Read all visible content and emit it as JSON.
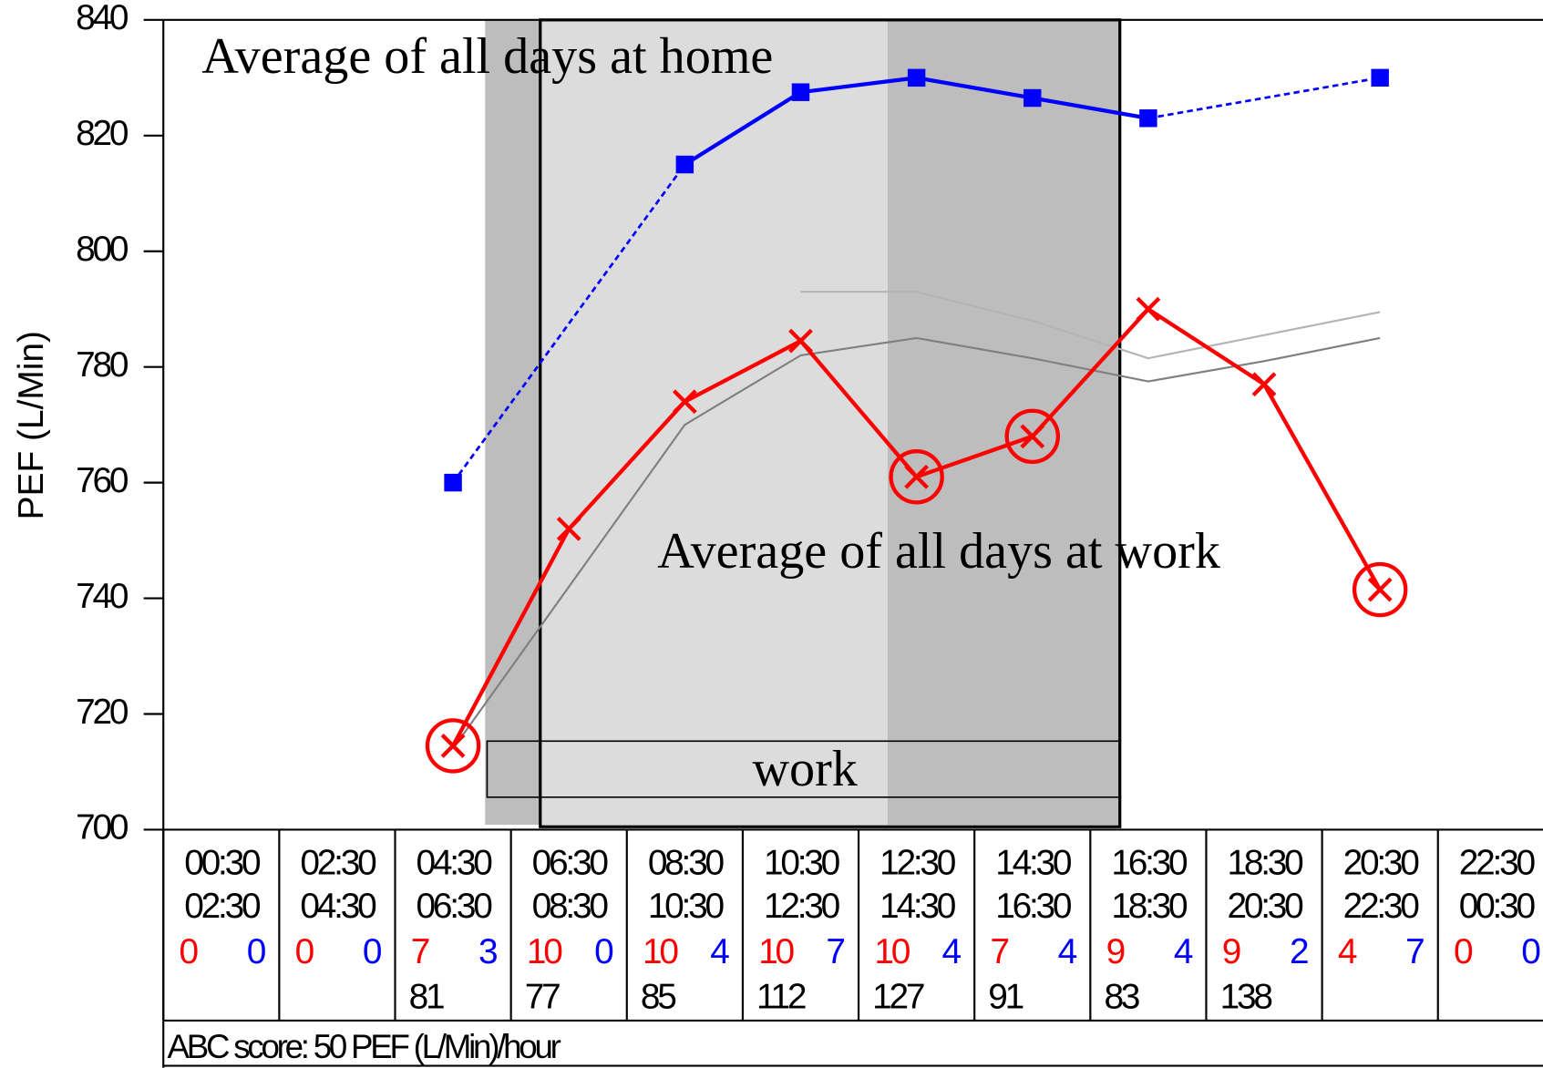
{
  "chart_data": {
    "type": "line",
    "ylabel": "PEF (L/Min)",
    "ylim": [
      700,
      840
    ],
    "yticks": [
      700,
      720,
      740,
      760,
      780,
      800,
      820,
      840
    ],
    "slot_start": [
      "00:30",
      "02:30",
      "04:30",
      "06:30",
      "08:30",
      "10:30",
      "12:30",
      "14:30",
      "16:30",
      "18:30",
      "20:30",
      "22:30"
    ],
    "slot_end": [
      "02:30",
      "04:30",
      "06:30",
      "08:30",
      "10:30",
      "12:30",
      "14:30",
      "16:30",
      "18:30",
      "20:30",
      "22:30",
      "00:30"
    ],
    "work_counts": [
      0,
      0,
      7,
      10,
      10,
      10,
      10,
      7,
      9,
      9,
      4,
      0
    ],
    "home_counts": [
      0,
      0,
      3,
      0,
      4,
      7,
      4,
      4,
      4,
      2,
      7,
      0
    ],
    "scores": [
      null,
      null,
      81,
      77,
      85,
      112,
      127,
      91,
      83,
      138,
      null,
      null
    ],
    "footer": "ABC score: 50 PEF (L/Min)/hour",
    "shade_label": "work",
    "series": [
      {
        "name": "Average of all days at home",
        "color": "#0000ff",
        "marker": "square",
        "values": [
          null,
          null,
          760,
          null,
          815,
          827.5,
          830,
          826.5,
          823,
          null,
          830,
          null
        ]
      },
      {
        "name": "Average of all days at work",
        "color": "#ff0000",
        "marker": "x",
        "values": [
          null,
          null,
          714.5,
          752,
          774,
          784.5,
          761,
          768,
          790,
          777,
          741.5,
          null
        ],
        "circled": [
          false,
          false,
          true,
          false,
          false,
          false,
          true,
          true,
          false,
          false,
          true,
          false
        ]
      },
      {
        "color": "#808080",
        "values": [
          null,
          null,
          714,
          742,
          770,
          782,
          785,
          781.5,
          777.5,
          781,
          785,
          null
        ]
      },
      {
        "color": "#b4b4b4",
        "values": [
          null,
          null,
          null,
          null,
          null,
          793,
          793,
          788,
          781.5,
          785.5,
          789.5,
          null
        ]
      }
    ]
  }
}
